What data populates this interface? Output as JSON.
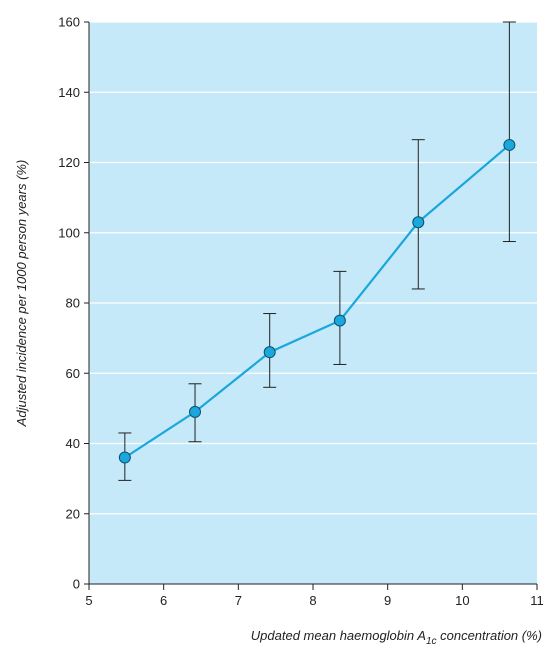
{
  "chart_data": {
    "type": "scatter",
    "title": "",
    "xlabel": {
      "before": "Updated mean haemoglobin A",
      "subscript": "1c",
      "after": " concentration (%)"
    },
    "ylabel": "Adjusted incidence per 1000 person years (%)",
    "xlim": [
      5,
      11
    ],
    "ylim": [
      0,
      160
    ],
    "xticks": [
      5,
      6,
      7,
      8,
      9,
      10,
      11
    ],
    "yticks": [
      0,
      20,
      40,
      60,
      80,
      100,
      120,
      140,
      160
    ],
    "grid": "horizontal",
    "legend": "none",
    "series": [
      {
        "x": [
          5.48,
          6.42,
          7.42,
          8.36,
          9.41,
          10.63
        ],
        "y": [
          36,
          49,
          66,
          75,
          103,
          125
        ],
        "error_low": [
          29.5,
          40.5,
          56,
          62.5,
          84,
          97.5
        ],
        "error_high": [
          43,
          57,
          77,
          89,
          126.5,
          160
        ],
        "connected": true
      }
    ],
    "colors": {
      "plot_background": "#c5e9f8",
      "gridline": "#ffffff",
      "line": "#19a7dc",
      "marker_fill": "#19a7dc",
      "marker_stroke": "#0b4f6e",
      "error_bar": "#222222",
      "axis": "#222222"
    }
  }
}
